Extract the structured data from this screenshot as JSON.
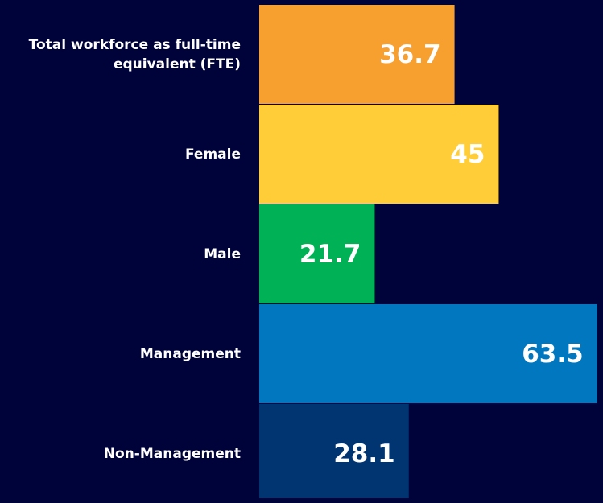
{
  "chart_data": {
    "type": "bar",
    "orientation": "horizontal",
    "categories": [
      "Total workforce as full-time equivalent (FTE)",
      "Female",
      "Male",
      "Management",
      "Non-Management"
    ],
    "values": [
      36.7,
      45,
      21.7,
      63.5,
      28.1
    ],
    "colors": [
      "#f7a030",
      "#fecd37",
      "#00b156",
      "#0077be",
      "#003572"
    ],
    "xlim": [
      0,
      64.6
    ]
  }
}
